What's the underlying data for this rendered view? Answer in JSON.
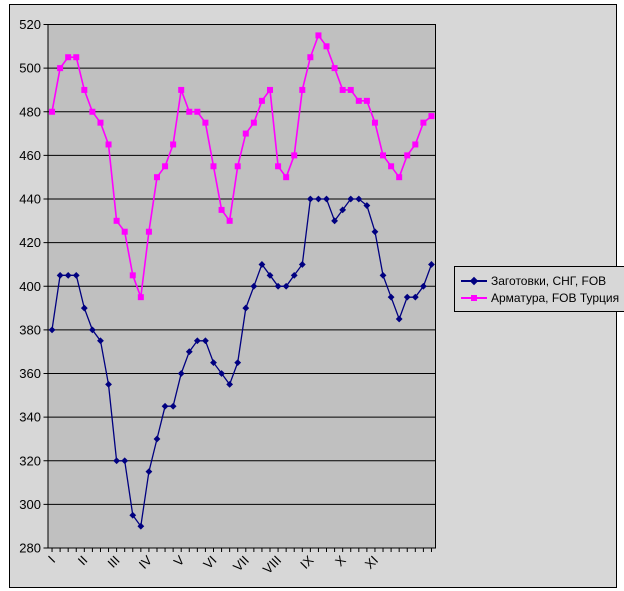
{
  "colors": {
    "chart_background": "#d7d7d7",
    "plot_background": "#c0c0c0",
    "gridline": "#000000",
    "axis": "#000000",
    "series1": "#000080",
    "series2": "#ff00ff"
  },
  "legend": {
    "items": [
      {
        "label": "Заготовки, СНГ, FOB",
        "marker": "diamond-icon"
      },
      {
        "label": "Арматура, FOB Турция",
        "marker": "square-icon"
      }
    ]
  },
  "chart_data": {
    "type": "line",
    "title": "",
    "xlabel": "",
    "ylabel": "",
    "ylim": [
      280,
      520
    ],
    "y_step": 20,
    "y_tick_labels": [
      "280",
      "300",
      "320",
      "340",
      "360",
      "380",
      "400",
      "420",
      "440",
      "460",
      "480",
      "500",
      "520"
    ],
    "x_tick_labels": [
      "I",
      "II",
      "III",
      "IV",
      "V",
      "VI",
      "VII",
      "VIII",
      "IX",
      "X",
      "XI"
    ],
    "x_label_every": 4,
    "n_points": 48,
    "grid": "horizontal",
    "legend_position": "right",
    "series": [
      {
        "name": "Заготовки, СНГ, FOB",
        "color": "#000080",
        "marker": "diamond",
        "values": [
          380,
          405,
          405,
          405,
          390,
          380,
          375,
          355,
          320,
          320,
          295,
          290,
          315,
          330,
          345,
          345,
          360,
          370,
          375,
          375,
          365,
          360,
          355,
          365,
          390,
          400,
          410,
          405,
          400,
          400,
          405,
          410,
          440,
          440,
          440,
          430,
          435,
          440,
          440,
          437,
          425,
          405,
          395,
          385,
          395,
          395,
          400,
          410
        ]
      },
      {
        "name": "Арматура, FOB Турция",
        "color": "#ff00ff",
        "marker": "square",
        "values": [
          480,
          500,
          505,
          505,
          490,
          480,
          475,
          465,
          430,
          425,
          405,
          395,
          425,
          450,
          455,
          465,
          490,
          480,
          480,
          475,
          455,
          435,
          430,
          455,
          470,
          475,
          485,
          490,
          455,
          450,
          460,
          490,
          505,
          515,
          510,
          500,
          490,
          490,
          485,
          485,
          475,
          460,
          455,
          450,
          460,
          465,
          475,
          478
        ]
      }
    ]
  }
}
